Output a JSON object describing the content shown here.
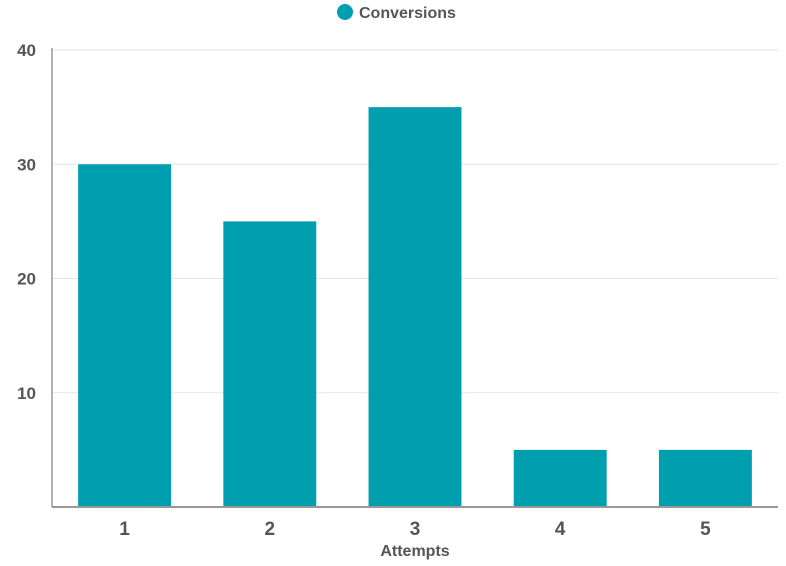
{
  "chart_data": {
    "type": "bar",
    "categories": [
      "1",
      "2",
      "3",
      "4",
      "5"
    ],
    "series": [
      {
        "name": "Conversions",
        "values": [
          30,
          25,
          35,
          5,
          5
        ]
      }
    ],
    "title": "",
    "xlabel": "Attempts",
    "ylabel": "",
    "ylim": [
      0,
      40
    ],
    "yticks": [
      "10",
      "20",
      "30",
      "40"
    ],
    "grid": true,
    "legend_position": "top-center",
    "colors": {
      "bar": "#009FAF",
      "grid": "#E6E6E6",
      "axis": "#999999",
      "text": "#555555"
    }
  }
}
